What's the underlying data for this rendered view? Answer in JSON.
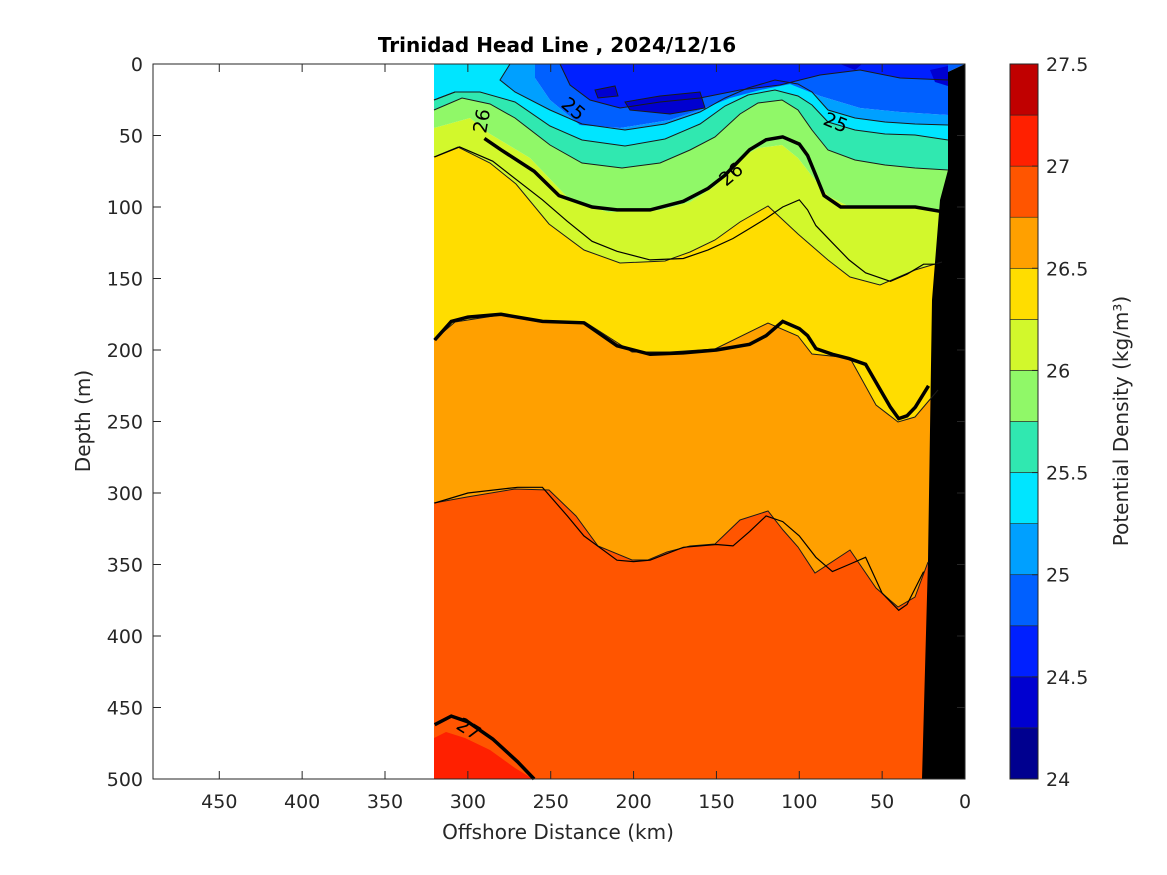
{
  "chart_data": {
    "type": "contour",
    "title": "Trinidad Head Line , 2024/12/16",
    "xlabel": "Offshore Distance (km)",
    "ylabel": "Depth (m)",
    "colorbar_label": "Potential Density (kg/m³)",
    "x_reversed": true,
    "y_reversed": true,
    "xlim": [
      490,
      0
    ],
    "ylim": [
      0,
      500
    ],
    "x_ticks": [
      450,
      400,
      350,
      300,
      250,
      200,
      150,
      100,
      50,
      0
    ],
    "y_ticks": [
      0,
      50,
      100,
      150,
      200,
      250,
      300,
      350,
      400,
      450,
      500
    ],
    "clim": [
      24,
      27.5
    ],
    "colorbar_ticks": [
      24,
      24.5,
      25,
      25.5,
      26,
      26.5,
      27,
      27.5
    ],
    "contour_interval": 0.25,
    "colormap": [
      "#00008f",
      "#0000d0",
      "#0020ff",
      "#0060ff",
      "#00a0ff",
      "#00e5ff",
      "#30e8b0",
      "#90f868",
      "#d2f82c",
      "#ffdd00",
      "#ffa000",
      "#ff5500",
      "#ff2000",
      "#c00000"
    ],
    "bottom_fill_color": "#000000",
    "data_extent_km": [
      320,
      10
    ],
    "contour_labels": [
      "25",
      "25",
      "26",
      "26",
      "27"
    ],
    "isopycnals": [
      {
        "level": 27.0,
        "x": [
          320,
          310,
          300,
          285,
          270,
          260
        ],
        "y": [
          462,
          456,
          460,
          472,
          488,
          500
        ]
      },
      {
        "level": 26.75,
        "x": [
          320,
          300,
          270,
          255,
          240,
          230,
          210,
          200,
          190,
          170,
          150,
          140,
          130,
          120,
          110,
          100,
          90,
          80,
          70,
          60,
          50,
          40,
          35,
          25
        ],
        "y": [
          307,
          300,
          296,
          296,
          316,
          330,
          347,
          348,
          347,
          338,
          336,
          337,
          327,
          316,
          320,
          330,
          345,
          355,
          350,
          345,
          370,
          382,
          378,
          355
        ]
      },
      {
        "level": 26.5,
        "x": [
          320,
          310,
          300,
          280,
          255,
          230,
          210,
          190,
          170,
          150,
          130,
          120,
          110,
          100,
          95,
          90,
          80,
          70,
          60,
          50,
          45,
          40,
          35,
          30,
          22
        ],
        "y": [
          193,
          180,
          177,
          175,
          180,
          181,
          197,
          203,
          202,
          200,
          196,
          190,
          180,
          185,
          190,
          199,
          203,
          206,
          210,
          230,
          240,
          248,
          246,
          240,
          225
        ]
      },
      {
        "level": 26.25,
        "x": [
          320,
          305,
          285,
          255,
          240,
          225,
          210,
          190,
          170,
          155,
          140,
          130,
          120,
          110,
          100,
          95,
          90,
          80,
          70,
          60,
          45,
          35,
          25,
          15
        ],
        "y": [
          65,
          58,
          68,
          95,
          110,
          124,
          131,
          137,
          136,
          130,
          122,
          115,
          108,
          100,
          95,
          102,
          113,
          125,
          137,
          146,
          152,
          147,
          140,
          140
        ]
      },
      {
        "level": 26.0,
        "x": [
          290,
          280,
          260,
          245,
          225,
          210,
          190,
          170,
          155,
          145,
          130,
          120,
          110,
          100,
          95,
          90,
          85,
          75,
          65,
          50,
          30,
          15,
          10
        ],
        "y": [
          52,
          60,
          75,
          92,
          100,
          102,
          102,
          96,
          87,
          78,
          60,
          53,
          51,
          56,
          64,
          78,
          92,
          100,
          100,
          100,
          100,
          103,
          105
        ]
      }
    ]
  }
}
